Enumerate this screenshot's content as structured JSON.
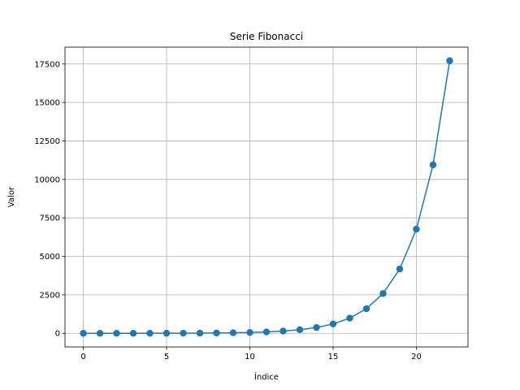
{
  "chart_data": {
    "type": "line",
    "title": "Serie Fibonacci",
    "xlabel": "Índice",
    "ylabel": "Valor",
    "xlim": [
      -1.1,
      23.1
    ],
    "ylim": [
      -885.5,
      18595.5
    ],
    "xticks": [
      0,
      5,
      10,
      15,
      20
    ],
    "yticks": [
      0,
      2500,
      5000,
      7500,
      10000,
      12500,
      15000,
      17500
    ],
    "grid": true,
    "marker": "circle",
    "color": "#1f77b4",
    "series": [
      {
        "x": [
          0,
          1,
          2,
          3,
          4,
          5,
          6,
          7,
          8,
          9,
          10,
          11,
          12,
          13,
          14,
          15,
          16,
          17,
          18,
          19,
          20,
          21,
          22
        ],
        "values": [
          0,
          1,
          1,
          2,
          3,
          5,
          8,
          13,
          21,
          34,
          55,
          89,
          144,
          233,
          377,
          610,
          987,
          1597,
          2584,
          4181,
          6765,
          10946,
          17711
        ]
      }
    ]
  }
}
